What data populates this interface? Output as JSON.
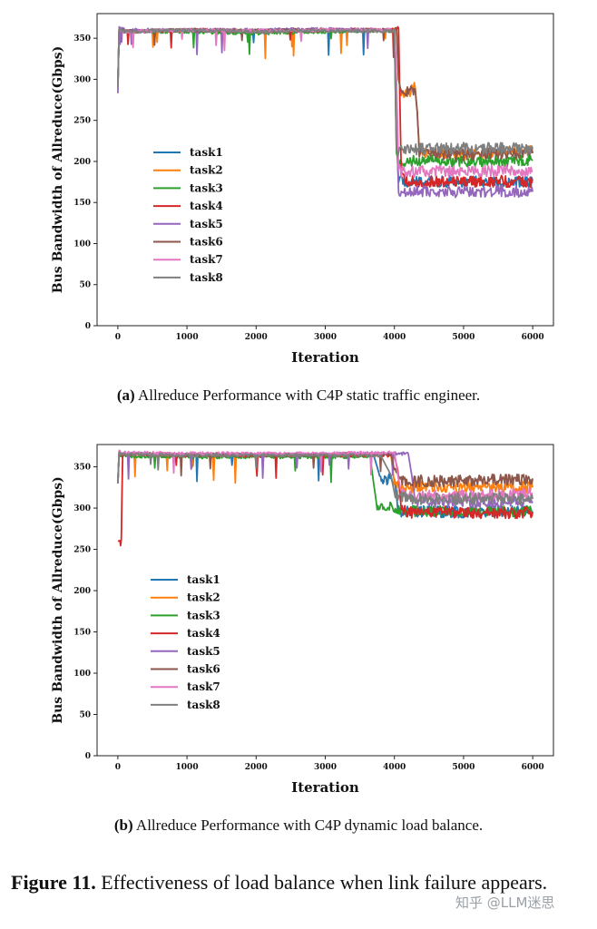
{
  "chart_data": [
    {
      "type": "line",
      "xlabel": "Iteration",
      "ylabel": "Bus Bandwidth of Allreduce(Gbps)",
      "xlim": [
        -300,
        6300
      ],
      "ylim": [
        0,
        380
      ],
      "xticks": [
        0,
        1000,
        2000,
        3000,
        4000,
        5000,
        6000
      ],
      "yticks": [
        0,
        50,
        100,
        150,
        200,
        250,
        300,
        350
      ],
      "grid": false,
      "legend_position": "center-left",
      "x": [
        0,
        20,
        100,
        1000,
        2000,
        3000,
        4000,
        4030,
        4060,
        4100,
        4200,
        4300,
        4330,
        4360,
        4500,
        5000,
        5500,
        6000
      ],
      "series": [
        {
          "name": "task1",
          "color": "#1f77b4",
          "values": [
            290,
            362,
            358,
            360,
            359,
            360,
            359,
            230,
            175,
            175,
            176,
            174,
            175,
            176,
            175,
            176,
            175,
            176
          ]
        },
        {
          "name": "task2",
          "color": "#ff7f0e",
          "values": [
            290,
            362,
            358,
            360,
            359,
            360,
            360,
            362,
            300,
            283,
            285,
            290,
            260,
            215,
            210,
            208,
            210,
            212
          ]
        },
        {
          "name": "task3",
          "color": "#2ca02c",
          "values": [
            290,
            362,
            358,
            358,
            356,
            358,
            359,
            210,
            200,
            200,
            201,
            200,
            200,
            200,
            201,
            200,
            200,
            201
          ]
        },
        {
          "name": "task4",
          "color": "#d62728",
          "values": [
            290,
            362,
            358,
            360,
            359,
            360,
            360,
            363,
            362,
            180,
            175,
            176,
            175,
            175,
            176,
            175,
            176,
            175
          ]
        },
        {
          "name": "task5",
          "color": "#9467bd",
          "values": [
            283,
            364,
            360,
            360,
            360,
            361,
            360,
            250,
            165,
            163,
            164,
            163,
            164,
            163,
            164,
            163,
            164,
            163
          ]
        },
        {
          "name": "task6",
          "color": "#8c564b",
          "values": [
            290,
            362,
            358,
            360,
            359,
            360,
            360,
            362,
            300,
            283,
            284,
            288,
            260,
            212,
            210,
            208,
            210,
            210
          ]
        },
        {
          "name": "task7",
          "color": "#e377c2",
          "values": [
            290,
            362,
            358,
            360,
            359,
            360,
            360,
            300,
            190,
            188,
            187,
            188,
            188,
            189,
            188,
            188,
            189,
            188
          ]
        },
        {
          "name": "task8",
          "color": "#7f7f7f",
          "values": [
            290,
            362,
            358,
            360,
            358,
            359,
            359,
            212,
            213,
            215,
            216,
            215,
            215,
            216,
            215,
            216,
            216,
            215
          ]
        }
      ]
    },
    {
      "type": "line",
      "xlabel": "Iteration",
      "ylabel": "Bus Bandwidth of Allreduce(Gbps)",
      "xlim": [
        -300,
        6300
      ],
      "ylim": [
        0,
        377
      ],
      "xticks": [
        0,
        1000,
        2000,
        3000,
        4000,
        5000,
        6000
      ],
      "yticks": [
        0,
        50,
        100,
        150,
        200,
        250,
        300,
        350
      ],
      "grid": false,
      "legend_position": "center-left",
      "x": [
        0,
        20,
        50,
        70,
        1000,
        2000,
        3000,
        3650,
        3700,
        3750,
        3800,
        3950,
        4000,
        4050,
        4100,
        4200,
        4250,
        4300,
        5000,
        5500,
        6000
      ],
      "series": [
        {
          "name": "task1",
          "color": "#1f77b4",
          "values": [
            330,
            368,
            366,
            365,
            364,
            364,
            364,
            364,
            364,
            350,
            335,
            335,
            335,
            300,
            295,
            296,
            295,
            296,
            295,
            296,
            295
          ]
        },
        {
          "name": "task2",
          "color": "#ff7f0e",
          "values": [
            330,
            368,
            366,
            365,
            364,
            364,
            364,
            364,
            364,
            364,
            364,
            364,
            330,
            326,
            325,
            326,
            325,
            326,
            325,
            326,
            325
          ]
        },
        {
          "name": "task3",
          "color": "#2ca02c",
          "values": [
            330,
            366,
            364,
            363,
            362,
            362,
            362,
            362,
            330,
            300,
            300,
            300,
            298,
            297,
            296,
            296,
            297,
            296,
            296,
            297,
            296
          ]
        },
        {
          "name": "task4",
          "color": "#d62728",
          "values": [
            260,
            260,
            262,
            365,
            364,
            364,
            364,
            364,
            364,
            364,
            364,
            364,
            364,
            345,
            298,
            296,
            295,
            296,
            295,
            294,
            295
          ]
        },
        {
          "name": "task5",
          "color": "#9467bd",
          "values": [
            330,
            369,
            367,
            366,
            365,
            365,
            365,
            366,
            366,
            366,
            366,
            366,
            366,
            366,
            366,
            366,
            340,
            308,
            308,
            307,
            308
          ]
        },
        {
          "name": "task6",
          "color": "#8c564b",
          "values": [
            330,
            369,
            367,
            366,
            365,
            365,
            365,
            366,
            366,
            366,
            366,
            366,
            345,
            340,
            334,
            333,
            333,
            333,
            333,
            334,
            336
          ]
        },
        {
          "name": "task7",
          "color": "#e377c2",
          "values": [
            330,
            370,
            368,
            367,
            366,
            366,
            366,
            367,
            367,
            367,
            367,
            367,
            367,
            340,
            318,
            316,
            315,
            316,
            315,
            316,
            318
          ]
        },
        {
          "name": "task8",
          "color": "#7f7f7f",
          "values": [
            330,
            368,
            366,
            365,
            364,
            364,
            364,
            364,
            364,
            364,
            364,
            340,
            318,
            316,
            314,
            312,
            312,
            311,
            311,
            312,
            311
          ]
        }
      ]
    }
  ],
  "captions": {
    "a_label": "(a)",
    "a_text": " Allreduce Performance with C4P static traffic engineer.",
    "b_label": "(b)",
    "b_text": " Allreduce Performance with C4P dynamic load balance.",
    "figure_label": "Figure 11.",
    "figure_text": " Effectiveness of load balance when link failure appears."
  },
  "watermark": "知乎 @LLM迷思"
}
